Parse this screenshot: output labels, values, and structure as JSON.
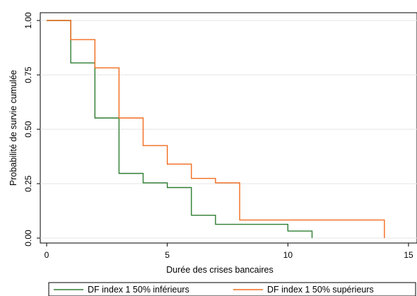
{
  "chart_data": {
    "type": "line",
    "step": true,
    "xlabel": "Durée des crises bancaires",
    "ylabel": "Probabilité de survie cumulée",
    "xlim": [
      0,
      15
    ],
    "ylim": [
      0,
      1
    ],
    "x_ticks": [
      0,
      5,
      10,
      15
    ],
    "y_ticks": [
      0.0,
      0.25,
      0.5,
      0.75,
      1.0
    ],
    "x_tick_labels": [
      "0",
      "5",
      "10",
      "15"
    ],
    "y_tick_labels": [
      "0.00",
      "0.25",
      "0.50",
      "0.75",
      "1.00"
    ],
    "grid": "horizontal",
    "legend_position": "bottom",
    "series": [
      {
        "name": "DF index 1 50% inférieurs",
        "color": "#2e7d32",
        "x": [
          0,
          1,
          1,
          2,
          2,
          3,
          3,
          4,
          4,
          5,
          5,
          6,
          6,
          7,
          7,
          10,
          10,
          11,
          11
        ],
        "y": [
          1.0,
          1.0,
          0.805,
          0.805,
          0.552,
          0.552,
          0.297,
          0.297,
          0.254,
          0.254,
          0.232,
          0.232,
          0.105,
          0.105,
          0.063,
          0.063,
          0.032,
          0.032,
          0.0
        ]
      },
      {
        "name": "DF index 1 50% supérieurs",
        "color": "#f26b1d",
        "x": [
          0,
          1,
          1,
          2,
          2,
          3,
          3,
          4,
          4,
          5,
          5,
          6,
          6,
          7,
          7,
          8,
          8,
          14,
          14
        ],
        "y": [
          1.0,
          1.0,
          0.912,
          0.912,
          0.782,
          0.782,
          0.552,
          0.552,
          0.425,
          0.425,
          0.34,
          0.34,
          0.274,
          0.274,
          0.254,
          0.254,
          0.083,
          0.083,
          0.0
        ]
      }
    ]
  }
}
